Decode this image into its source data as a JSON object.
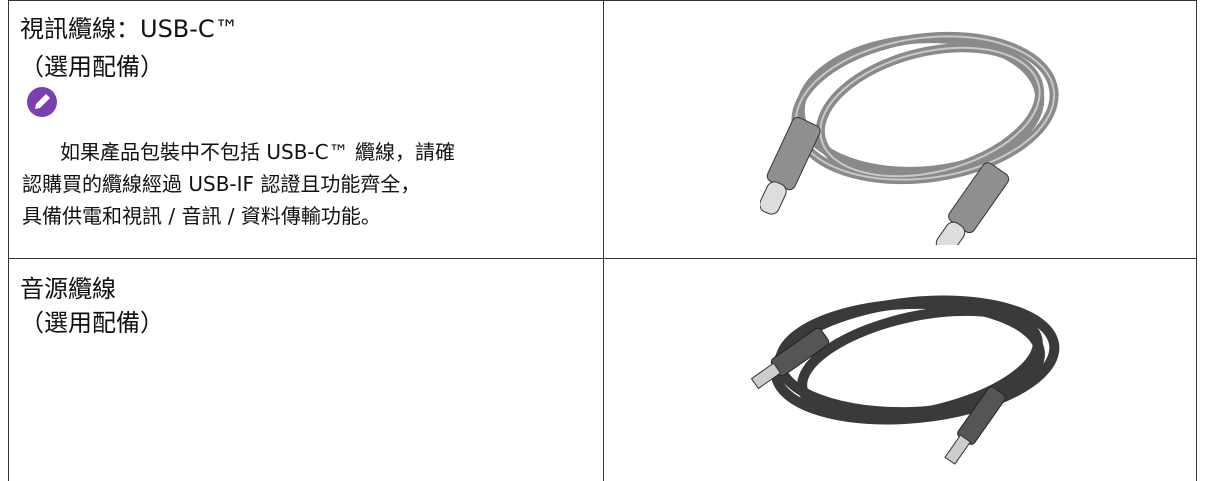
{
  "table": {
    "rows": [
      {
        "title": "視訊纜線：USB-C™",
        "subtitle": "（選用配備）",
        "note": [
          "如果產品包裝中不包括 USB-C™ 纜線，請確",
          "認購買的纜線經過 USB-IF 認證且功能齊全，",
          "具備供電和視訊 / 音訊 / 資料傳輸功能。"
        ]
      },
      {
        "title": "音源纜線",
        "subtitle": "（選用配備）"
      }
    ]
  }
}
